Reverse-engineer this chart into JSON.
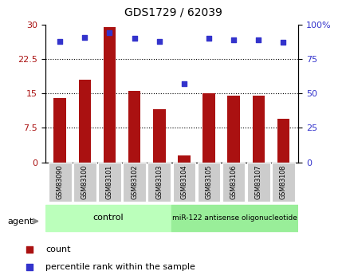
{
  "title": "GDS1729 / 62039",
  "samples": [
    "GSM83090",
    "GSM83100",
    "GSM83101",
    "GSM83102",
    "GSM83103",
    "GSM83104",
    "GSM83105",
    "GSM83106",
    "GSM83107",
    "GSM83108"
  ],
  "counts": [
    14,
    18,
    29.5,
    15.5,
    11.5,
    1.5,
    15,
    14.5,
    14.5,
    9.5
  ],
  "percentile_ranks": [
    88,
    91,
    94,
    90,
    88,
    57,
    90,
    89,
    89,
    87
  ],
  "left_ylim": [
    0,
    30
  ],
  "right_ylim": [
    0,
    100
  ],
  "left_yticks": [
    0,
    7.5,
    15,
    22.5,
    30
  ],
  "right_yticks": [
    0,
    25,
    50,
    75,
    100
  ],
  "right_yticklabels": [
    "0",
    "25",
    "50",
    "75",
    "100%"
  ],
  "bar_color": "#aa1111",
  "scatter_color": "#3333cc",
  "control_color": "#bbffbb",
  "treatment_color": "#99ee99",
  "tick_label_bg": "#cccccc",
  "control_label": "control",
  "treatment_label": "miR-122 antisense oligonucleotide",
  "agent_label": "agent",
  "legend_count": "count",
  "legend_percentile": "percentile rank within the sample"
}
